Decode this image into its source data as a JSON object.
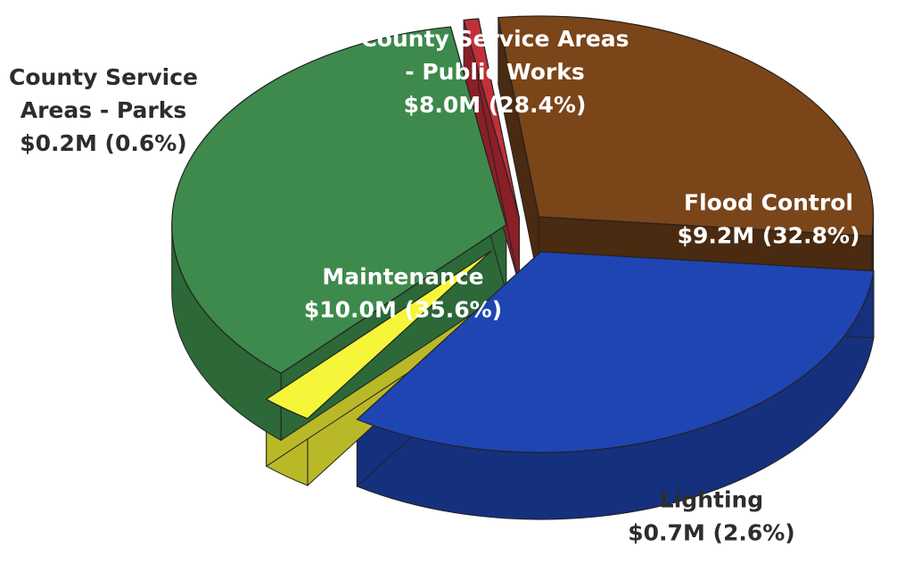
{
  "chart_data": {
    "type": "pie",
    "title": "",
    "unit": "$M",
    "slices": [
      {
        "name": "County Service Areas - Public Works",
        "value": 8.0,
        "percent": 28.4,
        "lines": [
          "County Service Areas",
          "- Public Works",
          "$8.0M (28.4%)"
        ],
        "color": "#7a4519",
        "color_dark": "#4a2a10"
      },
      {
        "name": "Flood Control",
        "value": 9.2,
        "percent": 32.8,
        "lines": [
          "Flood Control",
          "$9.2M (32.8%)"
        ],
        "color": "#1f45b3",
        "color_dark": "#15307d"
      },
      {
        "name": "Lighting",
        "value": 0.7,
        "percent": 2.6,
        "lines": [
          "Lighting",
          "$0.7M (2.6%)"
        ],
        "color": "#f5f53a",
        "color_dark": "#b9b928"
      },
      {
        "name": "Maintenance",
        "value": 10.0,
        "percent": 35.6,
        "lines": [
          "Maintenance",
          "$10.0M (35.6%)"
        ],
        "color": "#3d8a4c",
        "color_dark": "#2c6838"
      },
      {
        "name": "County Service Areas - Parks",
        "value": 0.2,
        "percent": 0.6,
        "lines": [
          "County Service",
          "Areas  - Parks",
          "$0.2M (0.6%)"
        ],
        "color": "#c0303a",
        "color_dark": "#8a1f28"
      }
    ]
  }
}
